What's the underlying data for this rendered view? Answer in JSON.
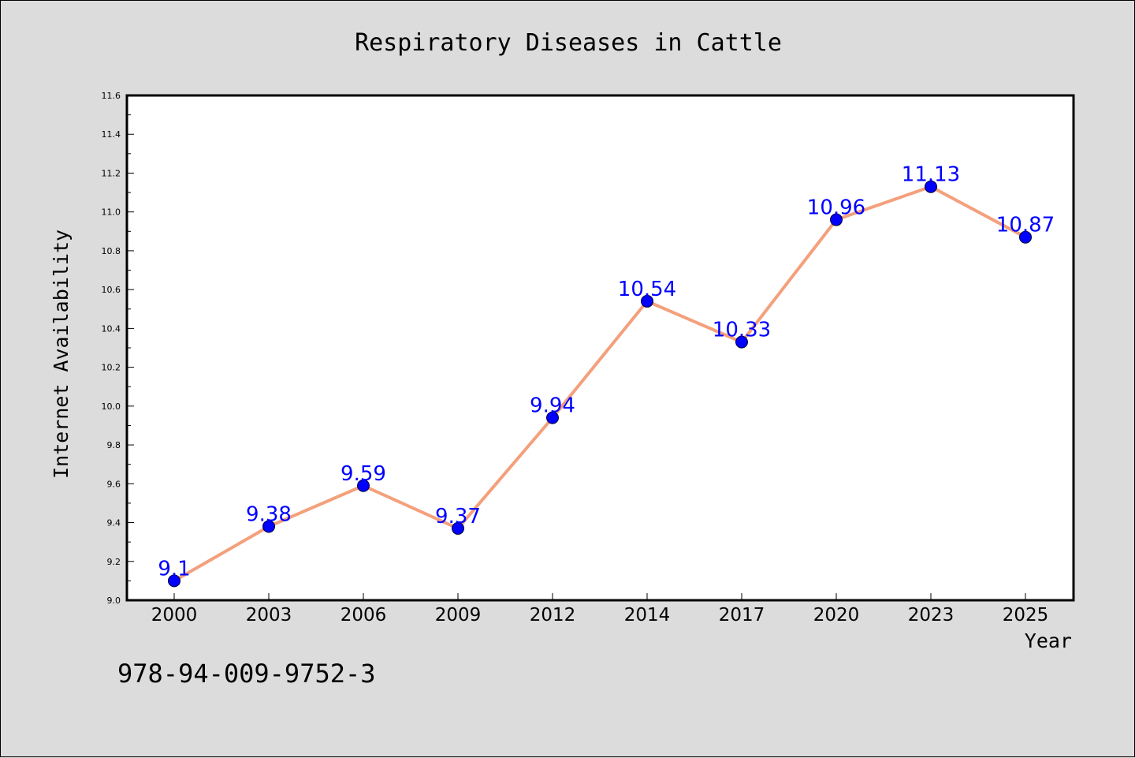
{
  "chart_data": {
    "type": "line",
    "title": "Respiratory Diseases in Cattle",
    "xlabel": "Year",
    "ylabel": "Internet Availability",
    "categories": [
      "2000",
      "2003",
      "2006",
      "2009",
      "2012",
      "2014",
      "2017",
      "2020",
      "2023",
      "2025"
    ],
    "values": [
      9.1,
      9.38,
      9.59,
      9.37,
      9.94,
      10.54,
      10.33,
      10.96,
      11.13,
      10.87
    ],
    "data_labels": [
      "9.1",
      "9.38",
      "9.59",
      "9.37",
      "9.94",
      "10.54",
      "10.33",
      "10.96",
      "11.13",
      "10.87"
    ],
    "ylim": [
      9.0,
      11.6
    ],
    "yticks": [
      "9.0",
      "9.2",
      "9.4",
      "9.6",
      "9.8",
      "10.0",
      "10.2",
      "10.4",
      "10.6",
      "10.8",
      "11.0",
      "11.2",
      "11.4",
      "11.6"
    ],
    "grid": false,
    "legend": "none",
    "colors": {
      "line": "#f4a07c",
      "marker": "#0000ff",
      "data_label": "#0000ff",
      "plot_background": "#ffffff",
      "figure_background": "#dcdcdc"
    }
  },
  "footer": {
    "code": "978-94-009-9752-3"
  }
}
